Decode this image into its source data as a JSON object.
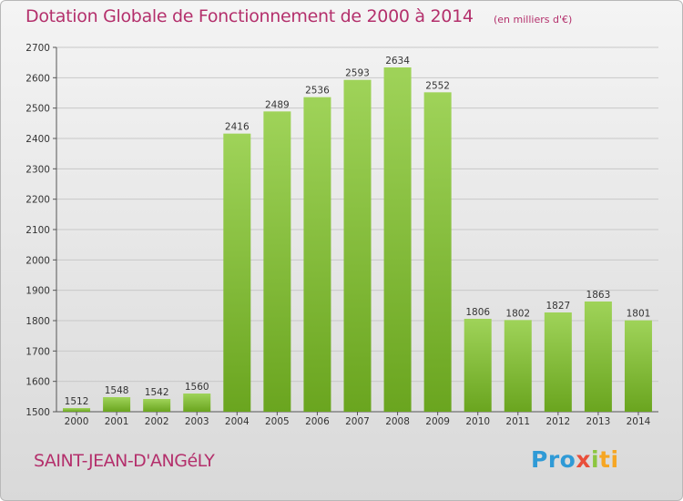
{
  "title": "Dotation Globale de Fonctionnement de 2000 à 2014",
  "unit": "(en milliers d'€)",
  "city": "SAINT-JEAN-D'ANGéLY",
  "logo": {
    "p1": "Pro",
    "p2": "x",
    "p3": "i",
    "p4": "ti"
  },
  "colors": {
    "bar_light": "#9fd359",
    "bar_dark": "#6aa51f",
    "title": "#b4306c",
    "grid": "#c8c8c8"
  },
  "chart_data": {
    "type": "bar",
    "categories": [
      "2000",
      "2001",
      "2002",
      "2003",
      "2004",
      "2005",
      "2006",
      "2007",
      "2008",
      "2009",
      "2010",
      "2011",
      "2012",
      "2013",
      "2014"
    ],
    "values": [
      1512,
      1548,
      1542,
      1560,
      2416,
      2489,
      2536,
      2593,
      2634,
      2552,
      1806,
      1802,
      1827,
      1863,
      1801
    ],
    "ylim": [
      1500,
      2700
    ],
    "yticks": [
      1500,
      1600,
      1700,
      1800,
      1900,
      2000,
      2100,
      2200,
      2300,
      2400,
      2500,
      2600,
      2700
    ],
    "grid": true,
    "data_labels": true
  }
}
